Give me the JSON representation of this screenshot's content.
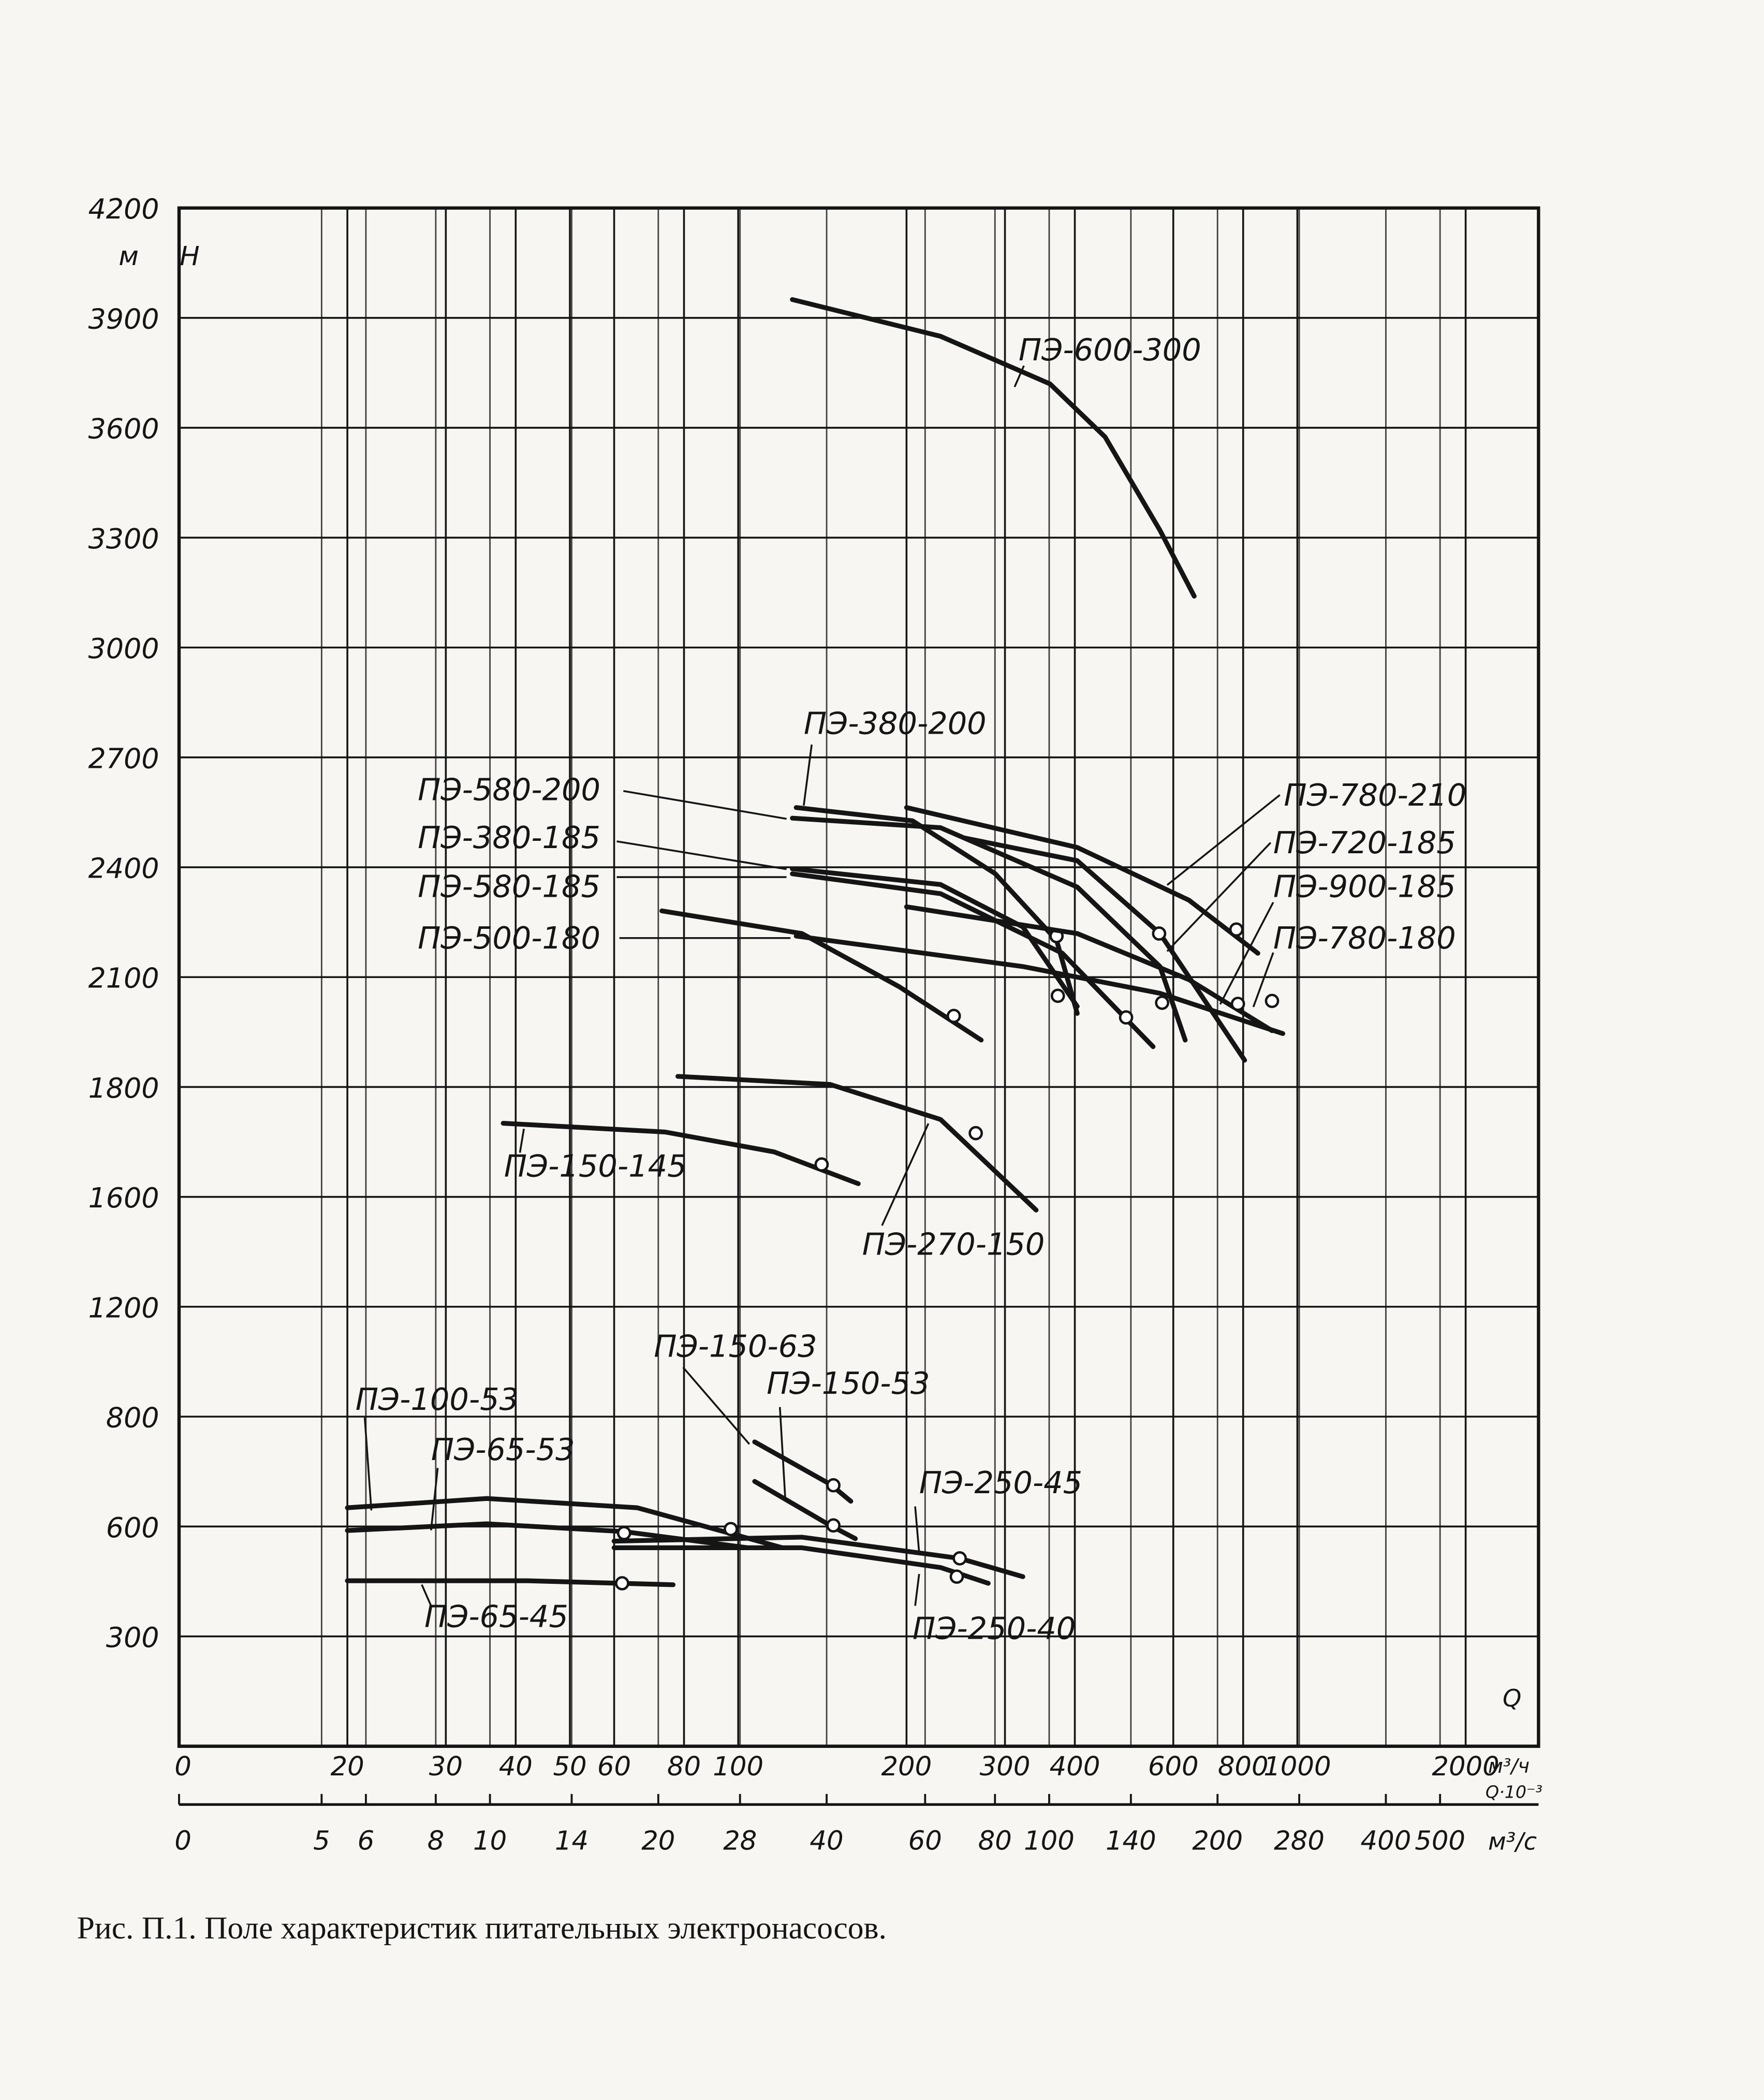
{
  "chart_data": {
    "type": "line",
    "caption": "Рис. П.1. Поле характеристик питательных электронасосов.",
    "color": "#151515",
    "y_label": "Н",
    "y_unit": "м",
    "x_label": "Q",
    "x_unit": "м³/ч",
    "x2_label": "Q·10⁻³",
    "x2_unit": "м³/с",
    "x_origin_label": "0",
    "x2_origin_label": "0",
    "xscale": "log",
    "xlim": [
      10,
      2700
    ],
    "xticks": [
      20,
      30,
      40,
      50,
      60,
      80,
      100,
      200,
      300,
      400,
      600,
      800,
      1000,
      2000
    ],
    "x2lim": [
      2.78,
      750
    ],
    "x2ticks": [
      5,
      6,
      8,
      10,
      14,
      20,
      28,
      40,
      60,
      80,
      100,
      140,
      200,
      280,
      400,
      500
    ],
    "ylim": [
      0,
      4200
    ],
    "yticks": [
      300,
      600,
      800,
      1200,
      1600,
      1800,
      2100,
      2400,
      2700,
      3000,
      3300,
      3600,
      3900,
      4200
    ],
    "grid": true,
    "series": [
      {
        "name": "ПЭ-600-300",
        "x": [
          125,
          230,
          361,
          453,
          568,
          654
        ],
        "values": [
          3950,
          3850,
          3720,
          3575,
          3320,
          3140
        ]
      },
      {
        "name": "ПЭ-380-200",
        "x": [
          127,
          205,
          288,
          371,
          404
        ],
        "values": [
          2563,
          2527,
          2383,
          2201,
          2001
        ],
        "marker": [
          371,
          2212
        ]
      },
      {
        "name": "ПЭ-580-200",
        "x": [
          125,
          230,
          404,
          568,
          630
        ],
        "values": [
          2534,
          2508,
          2346,
          2129,
          1928
        ],
        "marker": [
          573,
          2030
        ]
      },
      {
        "name": "ПЭ-380-185",
        "x": [
          125,
          230,
          323,
          404
        ],
        "values": [
          2396,
          2353,
          2237,
          2020
        ],
        "marker": [
          373,
          2049
        ]
      },
      {
        "name": "ПЭ-580-185",
        "x": [
          125,
          230,
          380,
          552
        ],
        "values": [
          2382,
          2328,
          2165,
          1910
        ],
        "marker": [
          494,
          1990
        ]
      },
      {
        "name": "ПЭ-500-180",
        "x": [
          73,
          130,
          194,
          272
        ],
        "values": [
          2281,
          2219,
          2074,
          1928
        ],
        "marker": [
          243,
          1994
        ]
      },
      {
        "name": "ПЭ-780-210",
        "x": [
          200,
          404,
          640,
          850
        ],
        "values": [
          2563,
          2454,
          2310,
          2165
        ],
        "marker": [
          778,
          2230
        ]
      },
      {
        "name": "ПЭ-720-185",
        "x": [
          254,
          404,
          568,
          805
        ],
        "values": [
          2480,
          2418,
          2219,
          1873
        ],
        "marker": [
          566,
          2219
        ]
      },
      {
        "name": "ПЭ-900-185",
        "x": [
          200,
          404,
          640,
          901
        ],
        "values": [
          2292,
          2219,
          2093,
          1954
        ],
        "marker": [
          783,
          2027
        ]
      },
      {
        "name": "ПЭ-780-180",
        "x": [
          127,
          323,
          568,
          942
        ],
        "values": [
          2212,
          2129,
          2056,
          1946
        ],
        "marker": [
          901,
          2035
        ]
      },
      {
        "name": "ПЭ-150-145",
        "x": [
          38,
          74,
          116,
          164
        ],
        "values": [
          1734,
          1718,
          1682,
          1624
        ],
        "marker": [
          141,
          1659
        ]
      },
      {
        "name": "ПЭ-270-150",
        "x": [
          78,
          146,
          230,
          341
        ],
        "values": [
          1829,
          1807,
          1741,
          1552
        ],
        "marker": [
          266,
          1716
        ]
      },
      {
        "name": "ПЭ-100-53",
        "x": [
          20,
          35.5,
          66,
          120
        ],
        "values": [
          634,
          651,
          634,
          542
        ],
        "marker": [
          97,
          593
        ]
      },
      {
        "name": "ПЭ-65-53",
        "x": [
          20,
          35.5,
          62.5,
          104
        ],
        "values": [
          589,
          605,
          586,
          542
        ],
        "marker": [
          62.5,
          582
        ]
      },
      {
        "name": "ПЭ-150-63",
        "x": [
          107,
          146,
          159
        ],
        "values": [
          754,
          677,
          646
        ],
        "marker": [
          148,
          675
        ]
      },
      {
        "name": "ПЭ-150-53",
        "x": [
          107,
          146,
          162
        ],
        "values": [
          682,
          602,
          567
        ],
        "marker": [
          148,
          602
        ]
      },
      {
        "name": "ПЭ-250-45",
        "x": [
          60,
          130,
          249,
          323
        ],
        "values": [
          560,
          571,
          513,
          463
        ],
        "marker": [
          249,
          513
        ]
      },
      {
        "name": "ПЭ-250-40",
        "x": [
          60,
          130,
          230,
          280
        ],
        "values": [
          542,
          542,
          488,
          445
        ],
        "marker": [
          246,
          463
        ]
      },
      {
        "name": "ПЭ-65-45",
        "x": [
          20,
          42,
          76.5
        ],
        "values": [
          452,
          452,
          441
        ],
        "marker": [
          62,
          445
        ]
      }
    ]
  }
}
